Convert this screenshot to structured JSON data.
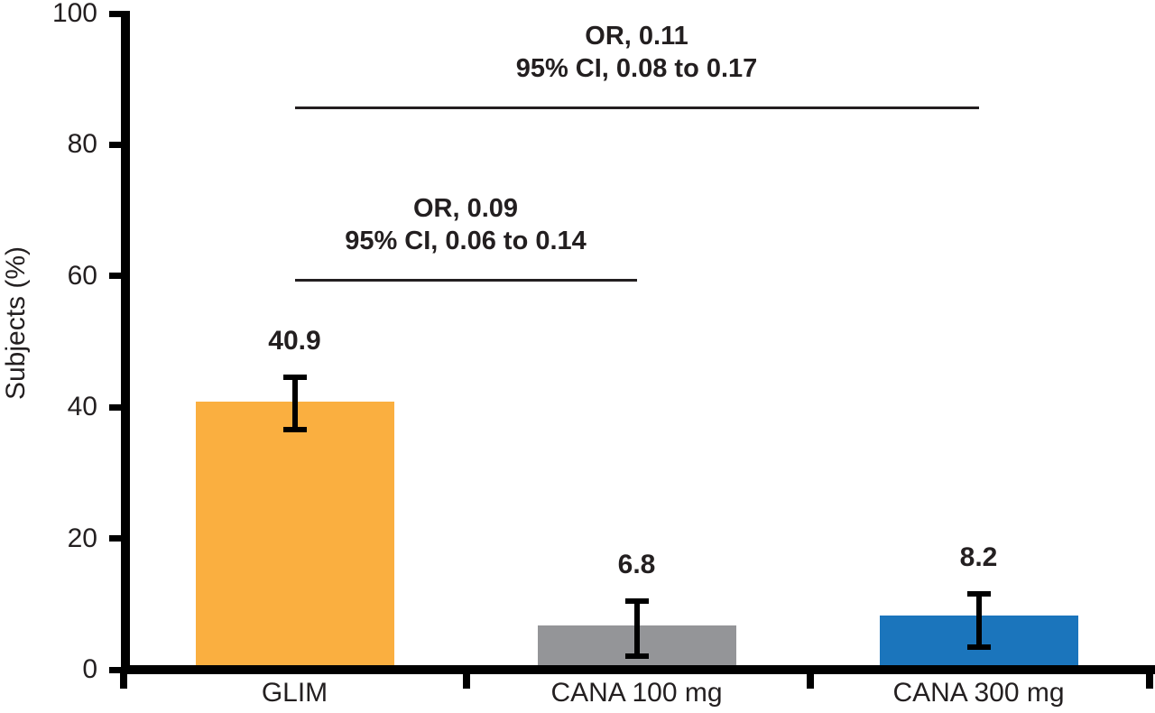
{
  "figure": {
    "background_color": "#FFFFFF",
    "text_color": "#231F20",
    "axis_color": "#000000"
  },
  "chart_data": {
    "type": "bar",
    "title": "",
    "xlabel": "",
    "ylabel": "Subjects (%)",
    "ylim": [
      0,
      100
    ],
    "yticks": [
      0,
      20,
      40,
      60,
      80,
      100
    ],
    "grid": false,
    "legend": false,
    "categories": [
      "GLIM",
      "CANA 100 mg",
      "CANA 300 mg"
    ],
    "values": [
      40.9,
      6.8,
      8.2
    ],
    "value_labels": [
      "40.9",
      "6.8",
      "8.2"
    ],
    "bar_colors": [
      "#FAAF40",
      "#949598",
      "#1B75BC"
    ],
    "error_bars": [
      {
        "low": 36.6,
        "high": 44.5
      },
      {
        "low": 2.0,
        "high": 10.5
      },
      {
        "low": 3.4,
        "high": 11.6
      }
    ],
    "annotations": [
      {
        "line1": "OR, 0.09",
        "line2": "95% CI, 0.06 to 0.14",
        "from_category": "GLIM",
        "to_category": "CANA 100 mg",
        "from_index": 0,
        "to_index": 1,
        "line_y_value": 59.6
      },
      {
        "line1": "OR, 0.11",
        "line2": "95% CI, 0.08 to 0.17",
        "from_category": "GLIM",
        "to_category": "CANA 300 mg",
        "from_index": 0,
        "to_index": 2,
        "line_y_value": 85.9
      }
    ]
  }
}
